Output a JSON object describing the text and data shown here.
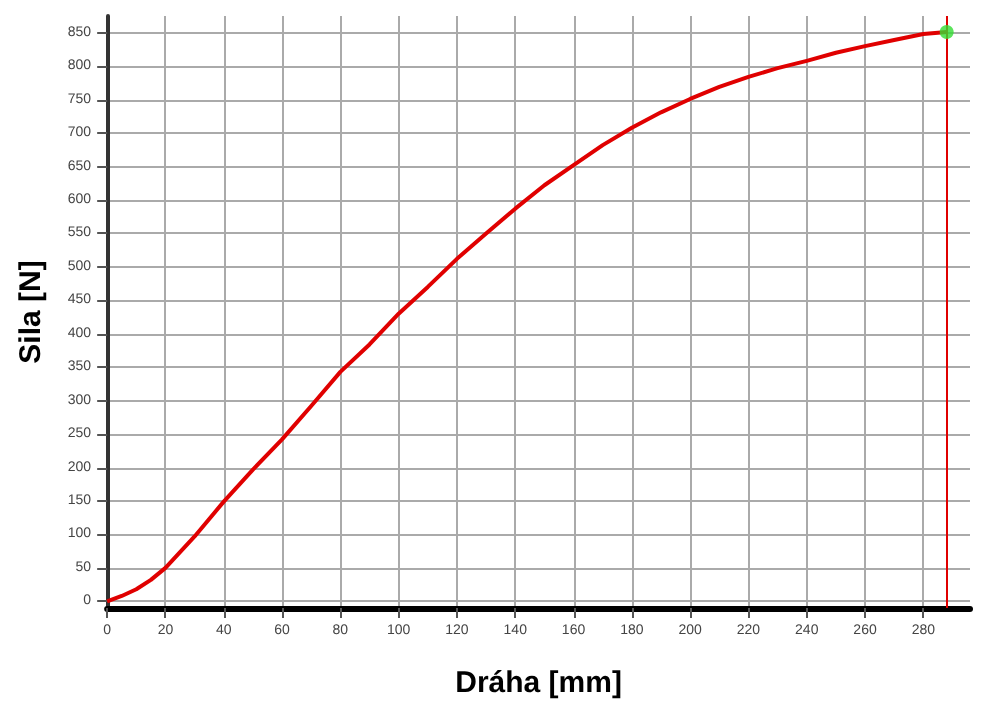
{
  "chart_data": {
    "type": "line",
    "xlabel": "Dráha [mm]",
    "ylabel": "Sila [N]",
    "xlim": [
      0,
      296
    ],
    "xticks": [
      0,
      20,
      40,
      60,
      80,
      100,
      120,
      140,
      160,
      180,
      200,
      220,
      240,
      260,
      280
    ],
    "ylim": [
      -10,
      875
    ],
    "yticks": [
      0,
      50,
      100,
      150,
      200,
      250,
      300,
      350,
      400,
      450,
      500,
      550,
      600,
      650,
      700,
      750,
      800,
      850
    ],
    "grid": true,
    "marker": "none",
    "line_style": "solid",
    "series": [
      {
        "color": "#e00000",
        "x": [
          0,
          5,
          10,
          15,
          20,
          30,
          40,
          50,
          60,
          70,
          80,
          90,
          100,
          110,
          120,
          130,
          140,
          150,
          160,
          170,
          180,
          190,
          200,
          210,
          220,
          230,
          240,
          250,
          260,
          270,
          280,
          288
        ],
        "values": [
          0,
          8,
          18,
          32,
          50,
          97,
          149,
          197,
          242,
          292,
          343,
          384,
          430,
          470,
          512,
          550,
          587,
          622,
          652,
          682,
          708,
          731,
          751,
          769,
          784,
          797,
          808,
          820,
          830,
          839,
          848,
          851
        ]
      },
      {
        "type": "scatter",
        "color": "#33dd33",
        "marker": "circle",
        "x": [
          288
        ],
        "values": [
          851
        ]
      }
    ],
    "ref_lines": [
      {
        "axis": "x",
        "value": 288,
        "color": "#e00000",
        "line_style": "solid"
      }
    ]
  }
}
